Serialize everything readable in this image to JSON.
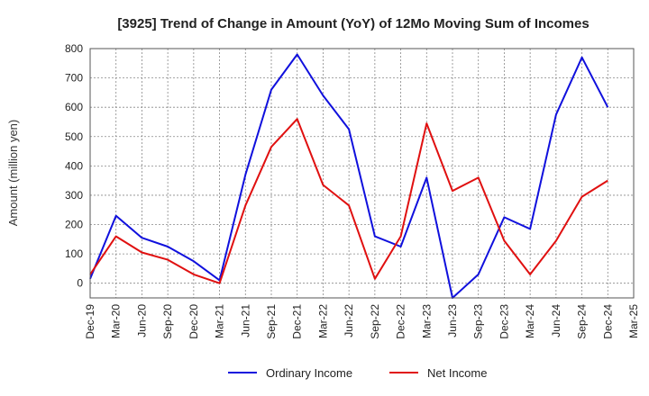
{
  "chart_data": {
    "type": "line",
    "title": "[3925]  Trend of Change in Amount (YoY) of 12Mo Moving Sum of Incomes",
    "ylabel": "Amount (million yen)",
    "xlabel": "",
    "ylim": [
      -50,
      800
    ],
    "yticks": [
      0,
      100,
      200,
      300,
      400,
      500,
      600,
      700,
      800
    ],
    "grid": true,
    "legend_position": "bottom",
    "categories": [
      "Dec-19",
      "Mar-20",
      "Jun-20",
      "Sep-20",
      "Dec-20",
      "Mar-21",
      "Jun-21",
      "Sep-21",
      "Dec-21",
      "Mar-22",
      "Jun-22",
      "Sep-22",
      "Dec-22",
      "Mar-23",
      "Jun-23",
      "Sep-23",
      "Dec-23",
      "Mar-24",
      "Jun-24",
      "Sep-24",
      "Dec-24",
      "Mar-25"
    ],
    "series": [
      {
        "name": "Ordinary Income",
        "color": "#1010dd",
        "values": [
          15,
          230,
          155,
          125,
          75,
          10,
          370,
          660,
          780,
          640,
          525,
          160,
          125,
          360,
          -50,
          30,
          225,
          185,
          575,
          770,
          600,
          null
        ]
      },
      {
        "name": "Net Income",
        "color": "#e01010",
        "values": [
          30,
          160,
          105,
          80,
          30,
          0,
          265,
          465,
          560,
          335,
          265,
          15,
          160,
          545,
          315,
          360,
          145,
          30,
          145,
          295,
          350,
          null
        ]
      }
    ]
  }
}
